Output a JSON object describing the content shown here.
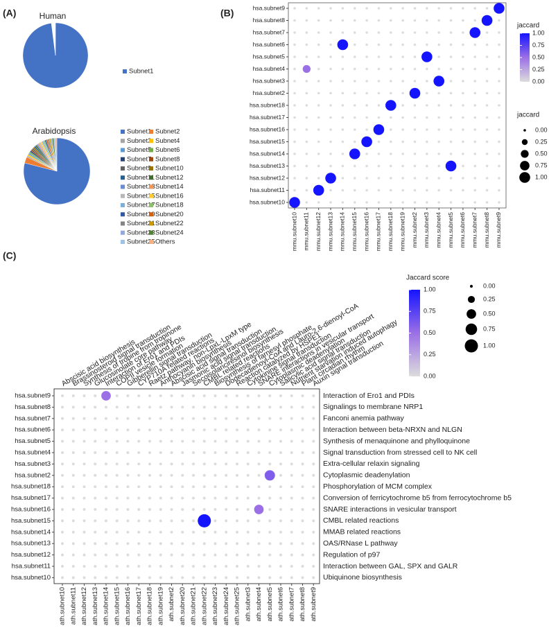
{
  "chart_data": [
    {
      "type": "pie",
      "panel_label": "(A)",
      "title": "Human",
      "categories": [
        "Subnet1",
        null
      ],
      "values": [
        98,
        2
      ],
      "colors": [
        "#4472c4",
        "#ffffff"
      ]
    },
    {
      "type": "pie",
      "title": "Arabidopsis",
      "categories": [
        "Subnet1",
        "Subnet2",
        "Subnet3",
        "Subnet4",
        "Subnet5",
        "Subnet6",
        "Subnet7",
        "Subnet8",
        "Subnet9",
        "Subnet10",
        "Subnet11",
        "Subnet12",
        "Subnet13",
        "Subnet14",
        "Subnet15",
        "Subnet16",
        "Subnet17",
        "Subnet18",
        "Subnet19",
        "Subnet20",
        "Subnet21",
        "Subnet22",
        "Subnet23",
        "Subnet24",
        "Subnet25",
        "Others"
      ],
      "values": [
        79,
        3,
        0.75,
        0.75,
        0.75,
        0.75,
        0.75,
        0.75,
        0.75,
        0.75,
        0.75,
        0.75,
        0.75,
        0.75,
        0.75,
        0.75,
        0.75,
        0.75,
        0.75,
        0.75,
        0.75,
        0.75,
        0.75,
        0.75,
        0.75,
        0.75
      ],
      "colors": [
        "#4472c4",
        "#ed7d31",
        "#a5a5a5",
        "#ffc000",
        "#5b9bd5",
        "#70ad47",
        "#264478",
        "#9e480e",
        "#636363",
        "#997300",
        "#255e91",
        "#43682b",
        "#698ed0",
        "#f1975a",
        "#b7b7b7",
        "#ffcd33",
        "#7cafdd",
        "#8cc168",
        "#335aa1",
        "#d26012",
        "#848484",
        "#cc9a00",
        "#8faadc",
        "#548235",
        "#9dc3e6",
        "#f4b183"
      ]
    },
    {
      "type": "dot",
      "panel_label": "(B)",
      "x": [
        "mmu.subnet10",
        "mmu.subnet11",
        "mmu.subnet12",
        "mmu.subnet13",
        "mmu.subnet14",
        "mmu.subnet15",
        "mmu.subnet16",
        "mmu.subnet17",
        "mmu.subnet18",
        "mmu.subnet19",
        "mmu.subnet2",
        "mmu.subnet3",
        "mmu.subnet4",
        "mmu.subnet5",
        "mmu.subnet6",
        "mmu.subnet7",
        "mmu.subnet8",
        "mmu.subnet9"
      ],
      "y": [
        "hsa.subnet9",
        "hsa.subnet8",
        "hsa.subnet7",
        "hsa.subnet6",
        "hsa.subnet5",
        "hsa.subnet4",
        "hsa.subnet3",
        "hsa.subnet2",
        "hsa.subnet18",
        "hsa.subnet17",
        "hsa.subnet16",
        "hsa.subnet15",
        "hsa.subnet14",
        "hsa.subnet13",
        "hsa.subnet12",
        "hsa.subnet11",
        "hsa.subnet10"
      ],
      "values": [
        [
          0,
          0,
          0,
          0,
          0,
          0,
          0,
          0,
          0,
          0,
          0,
          0,
          0,
          0,
          0,
          0,
          0,
          1
        ],
        [
          0,
          0,
          0,
          0,
          0,
          0,
          0,
          0,
          0,
          0,
          0,
          0,
          0,
          0,
          0,
          0,
          1,
          0
        ],
        [
          0,
          0,
          0,
          0,
          0,
          0,
          0,
          0,
          0,
          0,
          0,
          0,
          0,
          0,
          0,
          1,
          0,
          0
        ],
        [
          0,
          0,
          0,
          0,
          1,
          0,
          0,
          0,
          0,
          0,
          0,
          0,
          0,
          0,
          0,
          0,
          0,
          0
        ],
        [
          0,
          0,
          0,
          0,
          0,
          0,
          0,
          0,
          0,
          0,
          0,
          1,
          0,
          0,
          0,
          0,
          0,
          0
        ],
        [
          0,
          0.5,
          0,
          0,
          0,
          0,
          0,
          0,
          0,
          0,
          0,
          0,
          0,
          0,
          0,
          0,
          0,
          0
        ],
        [
          0,
          0,
          0,
          0,
          0,
          0,
          0,
          0,
          0,
          0,
          0,
          0,
          1,
          0,
          0,
          0,
          0,
          0
        ],
        [
          0,
          0,
          0,
          0,
          0,
          0,
          0,
          0,
          0,
          0,
          1,
          0,
          0,
          0,
          0,
          0,
          0,
          0
        ],
        [
          0,
          0,
          0,
          0,
          0,
          0,
          0,
          0,
          1,
          0,
          0,
          0,
          0,
          0,
          0,
          0,
          0,
          0
        ],
        [
          0,
          0,
          0,
          0,
          0,
          0,
          0,
          0,
          0,
          0,
          0,
          0,
          0,
          0,
          0,
          0,
          0,
          0
        ],
        [
          0,
          0,
          0,
          0,
          0,
          0,
          0,
          1,
          0,
          0,
          0,
          0,
          0,
          0,
          0,
          0,
          0,
          0
        ],
        [
          0,
          0,
          0,
          0,
          0,
          0,
          1,
          0,
          0,
          0,
          0,
          0,
          0,
          0,
          0,
          0,
          0,
          0
        ],
        [
          0,
          0,
          0,
          0,
          0,
          1,
          0,
          0,
          0,
          0,
          0,
          0,
          0,
          0,
          0,
          0,
          0,
          0
        ],
        [
          0,
          0,
          0,
          0,
          0,
          0,
          0,
          0,
          0,
          0,
          0,
          0,
          0,
          1,
          0,
          0,
          0,
          0
        ],
        [
          0,
          0,
          0,
          1,
          0,
          0,
          0,
          0,
          0,
          0,
          0,
          0,
          0,
          0,
          0,
          0,
          0,
          0
        ],
        [
          0,
          0,
          1,
          0,
          0,
          0,
          0,
          0,
          0,
          0,
          0,
          0,
          0,
          0,
          0,
          0,
          0,
          0
        ],
        [
          1,
          0,
          0,
          0,
          0,
          0,
          0,
          0,
          0,
          0,
          0,
          0,
          0,
          0,
          0,
          0,
          0,
          0
        ]
      ],
      "color_scale": [
        "#dcdcdc",
        "#9b6fe6",
        "#1414ff"
      ],
      "colorbar": {
        "title": "jaccard",
        "lim": [
          0,
          1
        ],
        "ticks": [
          {
            "value": 0,
            "label": "0.00"
          },
          {
            "value": 0.25,
            "label": "0.25"
          },
          {
            "value": 0.5,
            "label": "0.50"
          },
          {
            "value": 0.75,
            "label": "0.75"
          },
          {
            "value": 1,
            "label": "1.00"
          }
        ]
      },
      "size_legend": {
        "title": "jaccard",
        "ticks": [
          {
            "value": 0,
            "label": "0.00"
          },
          {
            "value": 0.25,
            "label": "0.25"
          },
          {
            "value": 0.5,
            "label": "0.50"
          },
          {
            "value": 0.75,
            "label": "0.75"
          },
          {
            "value": 1,
            "label": "1.00"
          }
        ]
      }
    },
    {
      "type": "dot",
      "panel_label": "(C)",
      "x": [
        "ath.subnet10",
        "ath.subnet11",
        "ath.subnet12",
        "ath.subnet13",
        "ath.subnet14",
        "ath.subnet15",
        "ath.subnet16",
        "ath.subnet17",
        "ath.subnet18",
        "ath.subnet19",
        "ath.subnet2",
        "ath.subnet20",
        "ath.subnet21",
        "ath.subnet22",
        "ath.subnet23",
        "ath.subnet24",
        "ath.subnet25",
        "ath.subnet3",
        "ath.subnet4",
        "ath.subnet5",
        "ath.subnet6",
        "ath.subnet7",
        "ath.subnet8",
        "ath.subnet9"
      ],
      "x_secondary": [
        "Abscisic acid biosynthesis",
        "Brassinosteroid signal transduction",
        "Synthesis of tropine from tropinone",
        "Glucosinolate core pathway",
        "Interaction of Ero1 and PDIs",
        "COPII vesicle formation",
        "Gibberellin signal transduction",
        "CYP710A related reactions",
        "Raetz pathway, non-LpxL-LpxM type",
        "Anthocyanin biosynthesis",
        "Abscisic acid signal transduction",
        "Jasmonic acid signal transduction",
        "Secoisolariciresinol biosynthesis",
        "CMBL related reactions",
        "Biosynthesis of farnesyl phosphate",
        "Dodecadienoyl-CoA and Lauro-2,6-dienoyl-CoA",
        "Reaction catalyzed by HSPE1",
        "Cytokinine signal transduction",
        "SNARE interactions in vesicular transport",
        "Cytoplasmic deadenylation",
        "Salicylic acid signal transduction",
        "Nutrient starvation induced autophagy",
        "Plant circadian rhythm",
        "Auxin signal transduction"
      ],
      "y": [
        "hsa.subnet9",
        "hsa.subnet8",
        "hsa.subnet7",
        "hsa.subnet6",
        "hsa.subnet5",
        "hsa.subnet4",
        "hsa.subnet3",
        "hsa.subnet2",
        "hsa.subnet18",
        "hsa.subnet17",
        "hsa.subnet16",
        "hsa.subnet15",
        "hsa.subnet14",
        "hsa.subnet13",
        "hsa.subnet12",
        "hsa.subnet11",
        "hsa.subnet10"
      ],
      "y_secondary": [
        "Interaction of Ero1 and PDIs",
        "Signalings to membrane NRP1",
        "Fanconi anemia pathway",
        "Interaction between beta-NRXN and NLGN",
        "Synthesis of menaquinone and phylloquinone",
        "Signal transduction from stressed cell to NK cell",
        "Extra-cellular relaxin signaling",
        "Cytoplasmic deadenylation",
        "Phosphorylation of MCM complex",
        "Conversion of ferricytochrome b5 from ferrocytochrome b5",
        "SNARE interactions in vesicular transport",
        "CMBL related reactions",
        "MMAB related reactions",
        "OAS/RNase L pathway",
        "Regulation of p97",
        "Interaction between GAL, SPX and GALR",
        "Ubiquinone biosynthesis"
      ],
      "values": [
        [
          0,
          0,
          0,
          0,
          0.5,
          0,
          0,
          0,
          0,
          0,
          0,
          0,
          0,
          0,
          0,
          0,
          0,
          0,
          0,
          0,
          0,
          0,
          0,
          0
        ],
        [
          0,
          0,
          0,
          0,
          0,
          0,
          0,
          0,
          0,
          0,
          0,
          0,
          0,
          0,
          0,
          0,
          0,
          0,
          0,
          0,
          0,
          0,
          0,
          0
        ],
        [
          0,
          0,
          0,
          0,
          0,
          0,
          0,
          0,
          0,
          0,
          0,
          0,
          0,
          0,
          0,
          0,
          0,
          0,
          0,
          0,
          0,
          0,
          0,
          0
        ],
        [
          0,
          0,
          0,
          0,
          0,
          0,
          0,
          0,
          0,
          0,
          0,
          0,
          0,
          0,
          0,
          0,
          0,
          0,
          0,
          0,
          0,
          0,
          0,
          0
        ],
        [
          0,
          0,
          0,
          0,
          0,
          0,
          0,
          0,
          0,
          0,
          0,
          0,
          0,
          0,
          0,
          0,
          0,
          0,
          0,
          0,
          0,
          0,
          0,
          0
        ],
        [
          0,
          0,
          0,
          0,
          0,
          0,
          0,
          0,
          0,
          0,
          0,
          0,
          0,
          0,
          0,
          0,
          0,
          0,
          0,
          0,
          0,
          0,
          0,
          0
        ],
        [
          0,
          0,
          0,
          0,
          0,
          0,
          0,
          0,
          0,
          0,
          0,
          0,
          0,
          0,
          0,
          0,
          0,
          0,
          0,
          0,
          0,
          0,
          0,
          0
        ],
        [
          0,
          0,
          0,
          0,
          0,
          0,
          0,
          0,
          0,
          0,
          0,
          0,
          0,
          0,
          0,
          0,
          0,
          0,
          0,
          0.6,
          0,
          0,
          0,
          0
        ],
        [
          0,
          0,
          0,
          0,
          0,
          0,
          0,
          0,
          0,
          0,
          0,
          0,
          0,
          0,
          0,
          0,
          0,
          0,
          0,
          0,
          0,
          0,
          0,
          0
        ],
        [
          0,
          0,
          0,
          0,
          0,
          0,
          0,
          0,
          0,
          0,
          0,
          0,
          0,
          0,
          0,
          0,
          0,
          0,
          0,
          0,
          0,
          0,
          0,
          0
        ],
        [
          0,
          0,
          0,
          0,
          0,
          0,
          0,
          0,
          0,
          0,
          0,
          0,
          0,
          0,
          0,
          0,
          0,
          0,
          0.5,
          0,
          0,
          0,
          0,
          0
        ],
        [
          0,
          0,
          0,
          0,
          0,
          0,
          0,
          0,
          0,
          0,
          0,
          0,
          0,
          1,
          0,
          0,
          0,
          0,
          0,
          0,
          0,
          0,
          0,
          0
        ],
        [
          0,
          0,
          0,
          0,
          0,
          0,
          0,
          0,
          0,
          0,
          0,
          0,
          0,
          0,
          0,
          0,
          0,
          0,
          0,
          0,
          0,
          0,
          0,
          0
        ],
        [
          0,
          0,
          0,
          0,
          0,
          0,
          0,
          0,
          0,
          0,
          0,
          0,
          0,
          0,
          0,
          0,
          0,
          0,
          0,
          0,
          0,
          0,
          0,
          0
        ],
        [
          0,
          0,
          0,
          0,
          0,
          0,
          0,
          0,
          0,
          0,
          0,
          0,
          0,
          0,
          0,
          0,
          0,
          0,
          0,
          0,
          0,
          0,
          0,
          0
        ],
        [
          0,
          0,
          0,
          0,
          0,
          0,
          0,
          0,
          0,
          0,
          0,
          0,
          0,
          0,
          0,
          0,
          0,
          0,
          0,
          0,
          0,
          0,
          0,
          0
        ],
        [
          0,
          0,
          0,
          0,
          0,
          0,
          0,
          0,
          0,
          0,
          0,
          0,
          0,
          0,
          0,
          0,
          0,
          0,
          0,
          0,
          0,
          0,
          0,
          0
        ]
      ],
      "color_scale": [
        "#dcdcdc",
        "#9b6fe6",
        "#1414ff"
      ],
      "colorbar": {
        "title": "Jaccard score",
        "lim": [
          0,
          1
        ],
        "ticks": [
          {
            "value": 0,
            "label": "0.00"
          },
          {
            "value": 0.25,
            "label": "0.25"
          },
          {
            "value": 0.5,
            "label": "0.50"
          },
          {
            "value": 0.75,
            "label": "0.75"
          },
          {
            "value": 1,
            "label": "1.00"
          }
        ]
      },
      "size_legend": {
        "ticks": [
          {
            "value": 0,
            "label": "0.00"
          },
          {
            "value": 0.25,
            "label": "0.25"
          },
          {
            "value": 0.5,
            "label": "0.50"
          },
          {
            "value": 0.75,
            "label": "0.75"
          },
          {
            "value": 1,
            "label": "1.00"
          }
        ]
      }
    }
  ]
}
